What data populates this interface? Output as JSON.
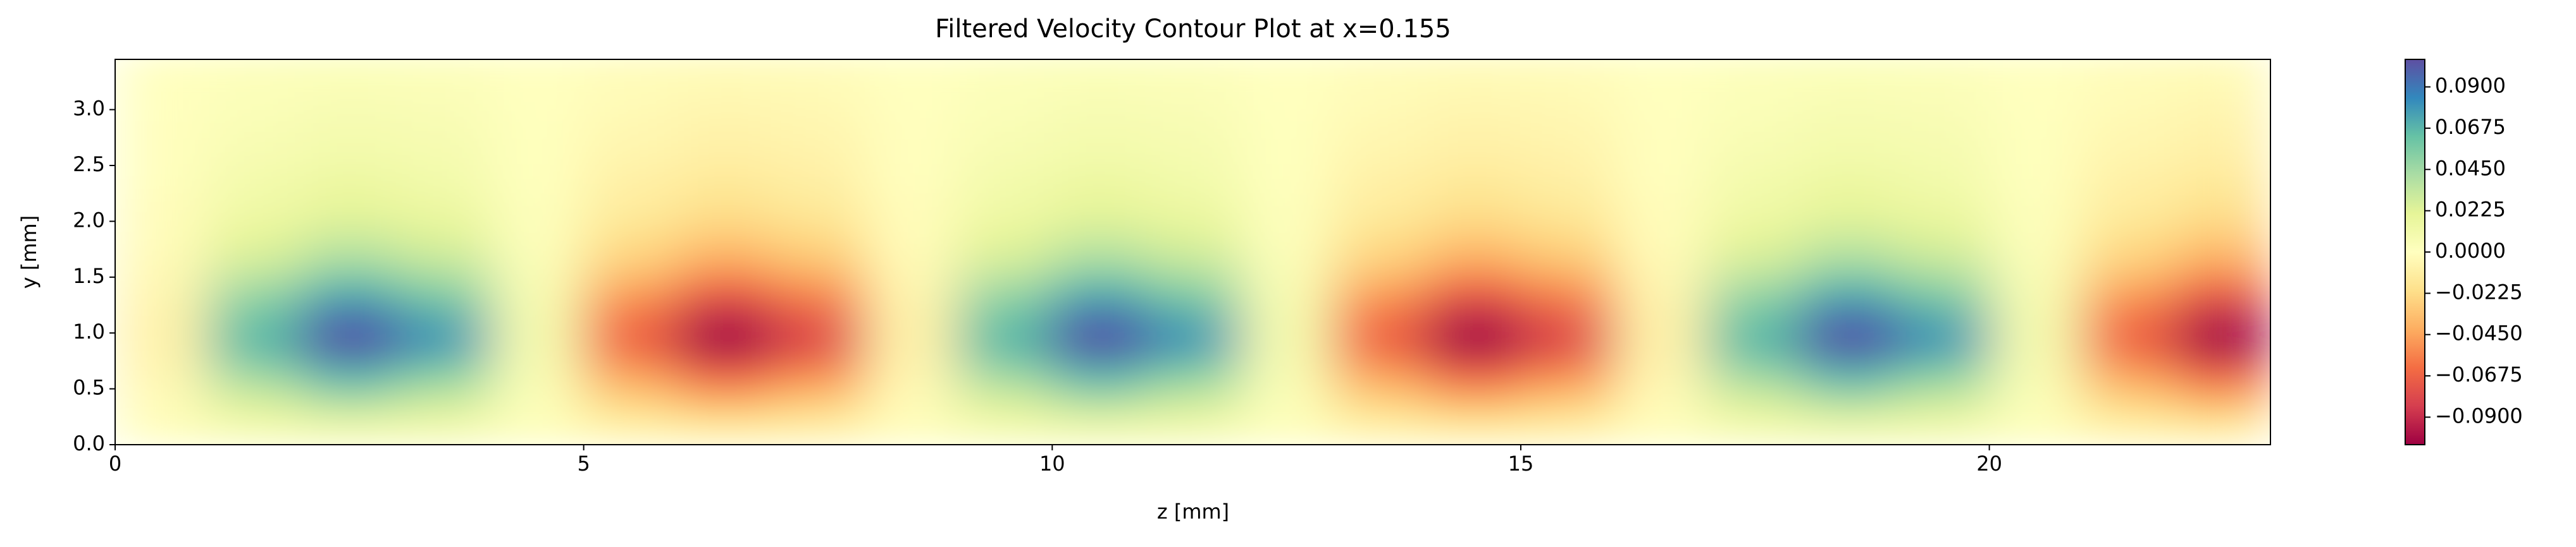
{
  "chart_data": {
    "type": "heatmap",
    "title": "Filtered Velocity Contour Plot at x=0.155",
    "x_label": "z [mm]",
    "y_label": "y [mm]",
    "x": [
      0.5,
      1.5,
      2.5,
      3.5,
      4.5,
      5.5,
      6.5,
      7.5,
      8.5,
      9.5,
      10.5,
      11.5,
      12.5,
      13.5,
      14.5,
      15.5,
      16.5,
      17.5,
      18.5,
      19.5,
      20.5,
      21.5,
      22.5
    ],
    "y": [
      0.125,
      0.375,
      0.625,
      0.875,
      1.125,
      1.375,
      1.625,
      1.875,
      2.125,
      2.375,
      2.625,
      2.875,
      3.125,
      3.375
    ],
    "values": [
      [
        -0.001,
        0.007,
        0.01,
        0.008,
        0.001,
        -0.007,
        -0.01,
        -0.008,
        -0.001,
        0.007,
        0.01,
        0.008,
        0.001,
        -0.007,
        -0.01,
        -0.008,
        -0.001,
        0.007,
        0.01,
        0.008,
        0.001,
        -0.007,
        -0.01
      ],
      [
        -0.003,
        0.026,
        0.04,
        0.03,
        0.003,
        -0.026,
        -0.04,
        -0.03,
        -0.003,
        0.026,
        0.04,
        0.03,
        0.003,
        -0.026,
        -0.04,
        -0.03,
        -0.003,
        0.026,
        0.04,
        0.03,
        0.003,
        -0.026,
        -0.04
      ],
      [
        -0.006,
        0.046,
        0.07,
        0.053,
        0.006,
        -0.046,
        -0.07,
        -0.053,
        -0.006,
        0.046,
        0.07,
        0.053,
        0.006,
        -0.046,
        -0.07,
        -0.053,
        -0.006,
        0.046,
        0.07,
        0.053,
        0.006,
        -0.046,
        -0.07
      ],
      [
        -0.008,
        0.065,
        0.1,
        0.076,
        0.008,
        -0.065,
        -0.1,
        -0.076,
        -0.008,
        0.065,
        0.1,
        0.076,
        0.008,
        -0.065,
        -0.1,
        -0.076,
        -0.008,
        0.065,
        0.1,
        0.076,
        0.008,
        -0.065,
        -0.1
      ],
      [
        -0.008,
        0.062,
        0.095,
        0.072,
        0.008,
        -0.062,
        -0.095,
        -0.072,
        -0.008,
        0.062,
        0.095,
        0.072,
        0.008,
        -0.062,
        -0.095,
        -0.072,
        -0.008,
        0.062,
        0.095,
        0.072,
        0.008,
        -0.062,
        -0.095
      ],
      [
        -0.006,
        0.046,
        0.07,
        0.053,
        0.006,
        -0.046,
        -0.07,
        -0.053,
        -0.006,
        0.046,
        0.07,
        0.053,
        0.006,
        -0.046,
        -0.07,
        -0.053,
        -0.006,
        0.046,
        0.07,
        0.053,
        0.006,
        -0.046,
        -0.07
      ],
      [
        -0.004,
        0.029,
        0.045,
        0.034,
        0.004,
        -0.029,
        -0.045,
        -0.034,
        -0.004,
        0.029,
        0.045,
        0.034,
        0.004,
        -0.029,
        -0.045,
        -0.034,
        -0.004,
        0.029,
        0.045,
        0.034,
        0.004,
        -0.029,
        -0.045
      ],
      [
        -0.002,
        0.02,
        0.03,
        0.023,
        0.002,
        -0.02,
        -0.03,
        -0.023,
        -0.002,
        0.02,
        0.03,
        0.023,
        0.002,
        -0.02,
        -0.03,
        -0.023,
        -0.002,
        0.02,
        0.03,
        0.023,
        0.002,
        -0.02,
        -0.03
      ],
      [
        -0.002,
        0.013,
        0.02,
        0.015,
        0.002,
        -0.013,
        -0.02,
        -0.015,
        -0.002,
        0.013,
        0.02,
        0.015,
        0.002,
        -0.013,
        -0.02,
        -0.015,
        -0.002,
        0.013,
        0.02,
        0.015,
        0.002,
        -0.013,
        -0.02
      ],
      [
        -0.001,
        0.01,
        0.015,
        0.011,
        0.001,
        -0.01,
        -0.015,
        -0.011,
        -0.001,
        0.01,
        0.015,
        0.011,
        0.001,
        -0.01,
        -0.015,
        -0.011,
        -0.001,
        0.01,
        0.015,
        0.011,
        0.001,
        -0.01,
        -0.015
      ],
      [
        -0.001,
        0.007,
        0.01,
        0.008,
        0.001,
        -0.007,
        -0.01,
        -0.008,
        -0.001,
        0.007,
        0.01,
        0.008,
        0.001,
        -0.007,
        -0.01,
        -0.008,
        -0.001,
        0.007,
        0.01,
        0.008,
        0.001,
        -0.007,
        -0.01
      ],
      [
        -0.001,
        0.005,
        0.008,
        0.006,
        0.001,
        -0.005,
        -0.008,
        -0.006,
        -0.001,
        0.005,
        0.008,
        0.006,
        0.001,
        -0.005,
        -0.008,
        -0.006,
        -0.001,
        0.005,
        0.008,
        0.006,
        0.001,
        -0.005,
        -0.008
      ],
      [
        0,
        0.003,
        0.005,
        0.004,
        0,
        -0.003,
        -0.005,
        -0.004,
        0,
        0.003,
        0.005,
        0.004,
        0,
        -0.003,
        -0.005,
        -0.004,
        0,
        0.003,
        0.005,
        0.004,
        0,
        -0.003,
        -0.005
      ],
      [
        0,
        0.002,
        0.003,
        0.002,
        0,
        -0.002,
        -0.003,
        -0.002,
        0,
        0.002,
        0.003,
        0.002,
        0,
        -0.002,
        -0.003,
        -0.002,
        0,
        0.002,
        0.003,
        0.002,
        0,
        -0.002,
        -0.003
      ]
    ],
    "xlim": [
      0,
      23
    ],
    "ylim": [
      0,
      3.45
    ],
    "xticks": [
      0,
      5,
      10,
      15,
      20
    ],
    "yticks": [
      {
        "value": 0,
        "label": "0.0"
      },
      0.5,
      {
        "value": 1,
        "label": "1.0"
      },
      1.5,
      {
        "value": 2,
        "label": "2.0"
      },
      2.5,
      {
        "value": 3,
        "label": "3.0"
      }
    ],
    "colormap": [
      "#9e0142",
      "#d53e4f",
      "#f46d43",
      "#fdae61",
      "#fee08b",
      "#ffffbf",
      "#e6f598",
      "#abdda4",
      "#66c2a5",
      "#3288bd",
      "#5e4fa2"
    ],
    "clim": [
      -0.105,
      0.105
    ],
    "cticks": [
      {
        "value": -0.09,
        "label": "−0.0900"
      },
      {
        "value": -0.0675,
        "label": "−0.0675"
      },
      {
        "value": -0.045,
        "label": "−0.0450"
      },
      {
        "value": -0.0225,
        "label": "−0.0225"
      },
      {
        "value": 0,
        "label": "0.0000"
      },
      {
        "value": 0.0225,
        "label": "0.0225"
      },
      {
        "value": 0.045,
        "label": "0.0450"
      },
      {
        "value": 0.0675,
        "label": "0.0675"
      },
      {
        "value": 0.09,
        "label": "0.0900"
      }
    ]
  }
}
